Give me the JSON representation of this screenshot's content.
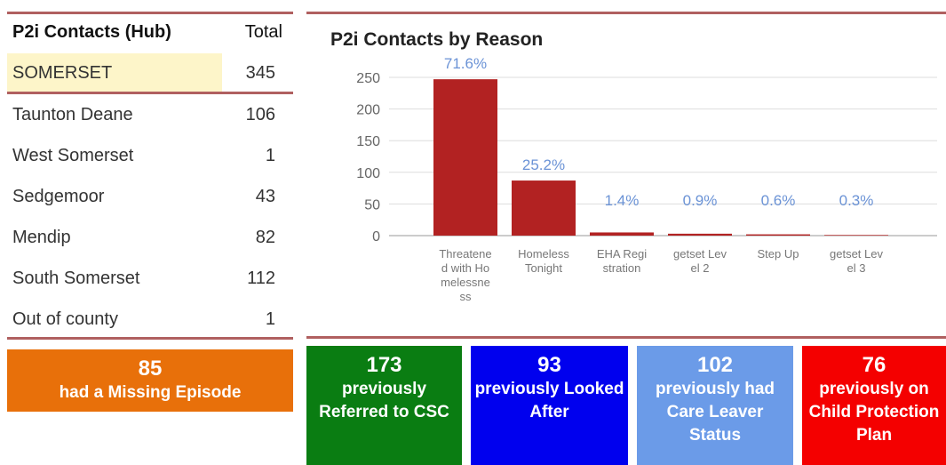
{
  "table": {
    "header": [
      "P2i Contacts (Hub)",
      "Total"
    ],
    "total_row": [
      "SOMERSET",
      "345"
    ],
    "rows": [
      [
        "Taunton Deane",
        "106"
      ],
      [
        "West Somerset",
        "1"
      ],
      [
        "Sedgemoor",
        "43"
      ],
      [
        "Mendip",
        "82"
      ],
      [
        "South Somerset",
        "112"
      ],
      [
        "Out of county",
        "1"
      ]
    ]
  },
  "missing_tile": {
    "number": "85",
    "label": "had a Missing Episode"
  },
  "chart_data": {
    "type": "bar",
    "title": "P2i Contacts by Reason",
    "categories": [
      "Threatened with Homelessness",
      "Homeless Tonight",
      "EHA Registration",
      "getset Level 2",
      "Step Up",
      "getset Level 3"
    ],
    "values": [
      247,
      87,
      5,
      3,
      2,
      1
    ],
    "data_labels": [
      "71.6%",
      "25.2%",
      "1.4%",
      "0.9%",
      "0.6%",
      "0.3%"
    ],
    "color": "#b22222",
    "ylim": [
      0,
      250
    ],
    "yticks": [
      0,
      50,
      100,
      150,
      200,
      250
    ],
    "grid": true
  },
  "tiles": [
    {
      "number": "173",
      "label": "previously Referred to CSC",
      "color": "#0a7d12"
    },
    {
      "number": "93",
      "label": "previously Looked After",
      "color": "#0000ee"
    },
    {
      "number": "102",
      "label": "previously had Care Leaver Status",
      "color": "#6b9be8"
    },
    {
      "number": "76",
      "label": "previously on Child Protection Plan",
      "color": "#f40000"
    }
  ]
}
